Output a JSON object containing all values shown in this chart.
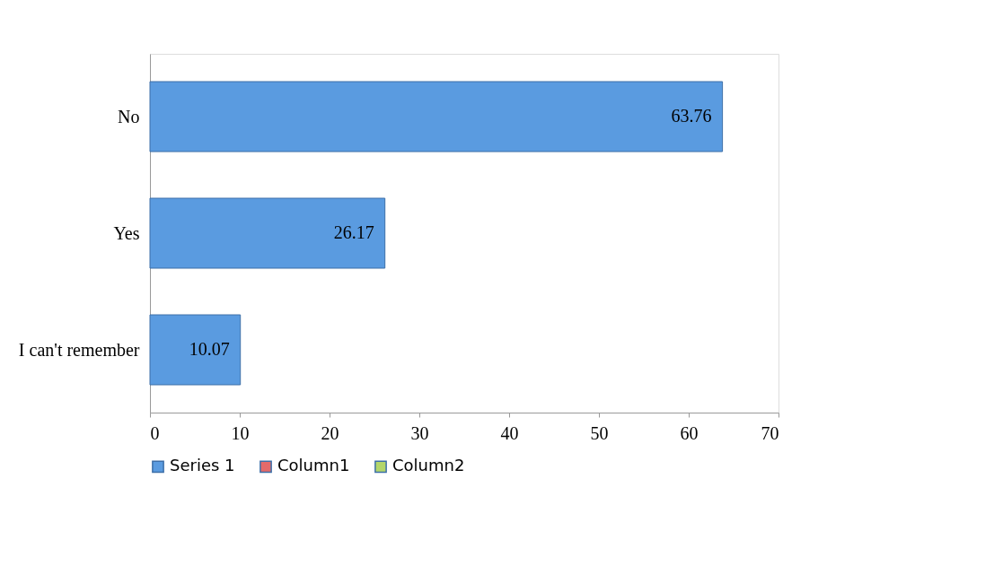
{
  "chart_data": {
    "type": "bar",
    "orientation": "horizontal",
    "categories": [
      "No",
      "Yes",
      "I can't remember"
    ],
    "series": [
      {
        "name": "Series 1",
        "color": "#5a9be0",
        "values": [
          63.76,
          26.17,
          10.07
        ]
      },
      {
        "name": "Column1",
        "color": "#e46a6a",
        "values": [
          null,
          null,
          null
        ]
      },
      {
        "name": "Column2",
        "color": "#b3d66a",
        "values": [
          null,
          null,
          null
        ]
      }
    ],
    "xlim": [
      0,
      70
    ],
    "xticks": [
      0,
      10,
      20,
      30,
      40,
      50,
      60,
      70
    ],
    "data_labels": true,
    "grid": false,
    "legend": "bottom"
  }
}
